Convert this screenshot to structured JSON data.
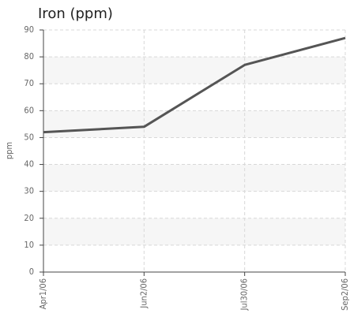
{
  "chart_data": {
    "type": "line",
    "title": "Iron (ppm)",
    "y_label": "ppm",
    "categories": [
      "Apr1/06",
      "Jun2/06",
      "Jul30/06",
      "Sep2/06"
    ],
    "series": [
      {
        "name": "Iron",
        "color": "#555555",
        "values": [
          52,
          54,
          77,
          87
        ]
      }
    ],
    "ylim": [
      0,
      90
    ],
    "yticks": [
      0,
      10,
      20,
      30,
      40,
      50,
      60,
      70,
      80,
      90
    ],
    "grid": true
  }
}
